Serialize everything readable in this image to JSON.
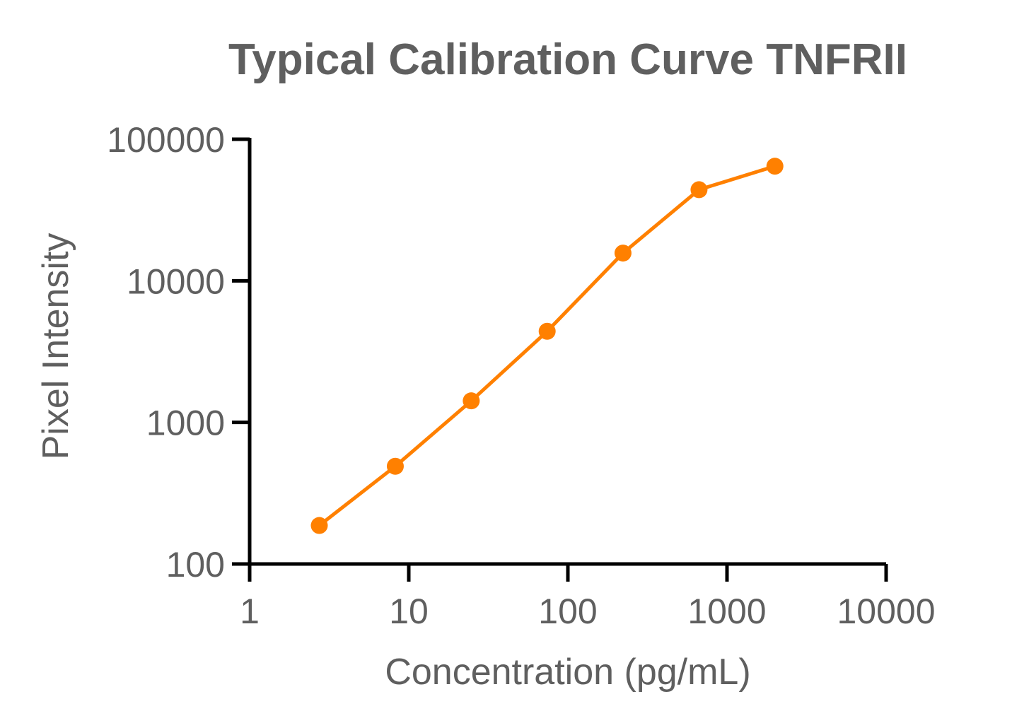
{
  "chart_data": {
    "type": "line",
    "title": "Typical Calibration Curve TNFRII",
    "xlabel": "Concentration (pg/mL)",
    "ylabel": "Pixel Intensity",
    "x_scale": "log",
    "y_scale": "log",
    "xlim": [
      1,
      10000
    ],
    "ylim": [
      100,
      100000
    ],
    "x_ticks": [
      "1",
      "10",
      "100",
      "1000",
      "10000"
    ],
    "y_ticks": [
      "100",
      "1000",
      "10000",
      "100000"
    ],
    "grid": false,
    "series": [
      {
        "color": "#ff8000",
        "x": [
          2.74,
          8.23,
          24.7,
          74.1,
          222,
          667,
          2000
        ],
        "y": [
          187,
          490,
          1420,
          4400,
          15700,
          44000,
          64500
        ]
      }
    ]
  }
}
